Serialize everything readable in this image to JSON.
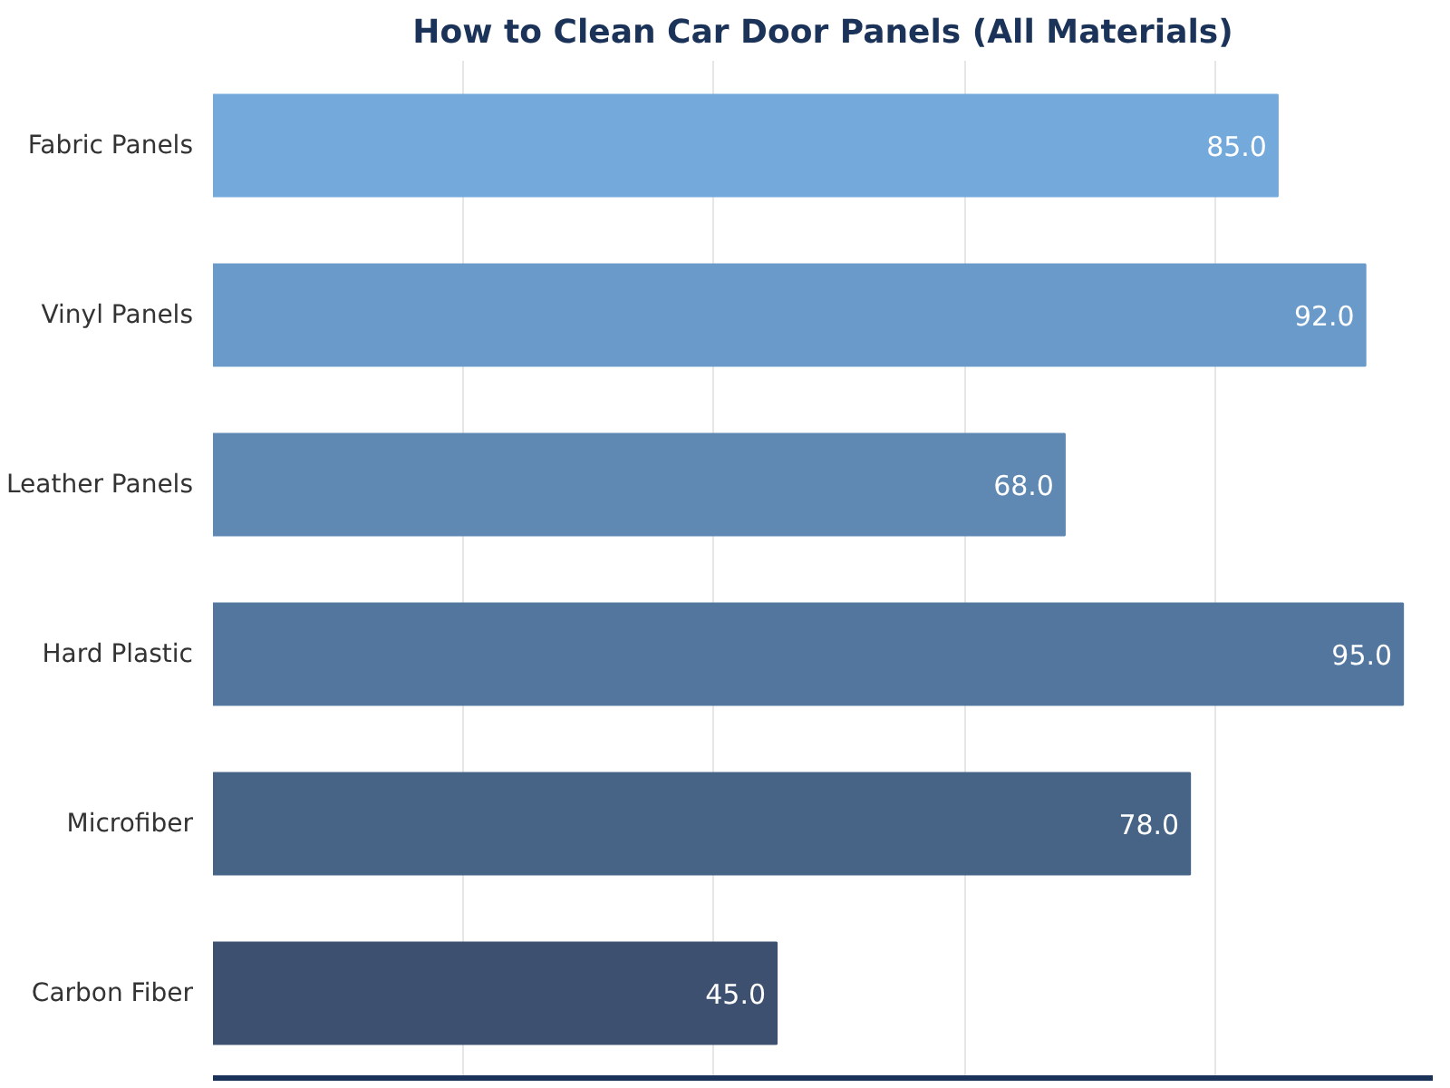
{
  "chart_data": {
    "type": "bar",
    "orientation": "horizontal",
    "title": "How to Clean Car Door Panels (All Materials)",
    "categories": [
      "Fabric Panels",
      "Vinyl Panels",
      "Leather Panels",
      "Hard Plastic",
      "Microfiber",
      "Carbon Fiber"
    ],
    "values": [
      85.0,
      92.0,
      68.0,
      95.0,
      78.0,
      45.0
    ],
    "value_labels": [
      "85.0",
      "92.0",
      "68.0",
      "95.0",
      "78.0",
      "45.0"
    ],
    "colors": [
      "#74a9db",
      "#6a9ac9",
      "#5f88b3",
      "#52769e",
      "#476487",
      "#3d5070"
    ],
    "grid": "x",
    "tick_labels": "y"
  }
}
